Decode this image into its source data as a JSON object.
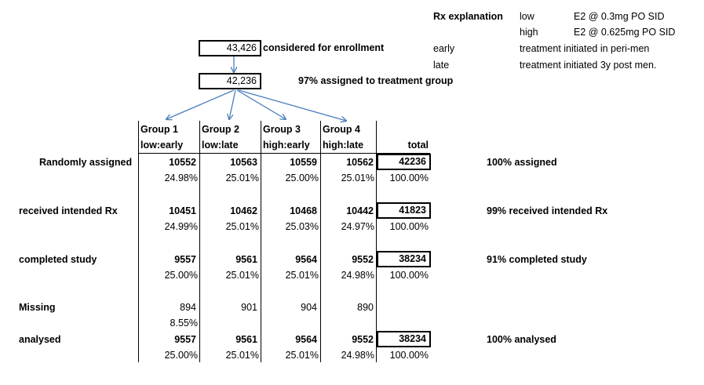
{
  "rx_explanation": {
    "title": "Rx explanation",
    "rows": [
      {
        "key": "low",
        "value": "E2 @ 0.3mg PO SID"
      },
      {
        "key": "high",
        "value": "E2 @ 0.625mg PO SID"
      },
      {
        "key": "early",
        "value": "treatment initiated in peri-men"
      },
      {
        "key": "late",
        "value": "treatment initiated 3y post men."
      }
    ]
  },
  "flow": {
    "considered_value": "43,426",
    "considered_label": "considered for enrollment",
    "assigned_value": "42,236",
    "assigned_label": "97% assigned to treatment group"
  },
  "table": {
    "groups": [
      {
        "name": "Group 1",
        "sub": "low:early"
      },
      {
        "name": "Group 2",
        "sub": "low:late"
      },
      {
        "name": "Group 3",
        "sub": "high:early"
      },
      {
        "name": "Group 4",
        "sub": "high:late"
      }
    ],
    "total_header": "total",
    "rows": [
      {
        "label": "Randomly assigned",
        "values": [
          "10552",
          "10563",
          "10559",
          "10562"
        ],
        "total": "42236",
        "pcts": [
          "24.98%",
          "25.01%",
          "25.00%",
          "25.01%"
        ],
        "total_pct": "100.00%",
        "note": "100% assigned"
      },
      {
        "label": "received intended Rx",
        "values": [
          "10451",
          "10462",
          "10468",
          "10442"
        ],
        "total": "41823",
        "pcts": [
          "24.99%",
          "25.01%",
          "25.03%",
          "24.97%"
        ],
        "total_pct": "100.00%",
        "note": "99% received intended Rx"
      },
      {
        "label": "completed study",
        "values": [
          "9557",
          "9561",
          "9564",
          "9552"
        ],
        "total": "38234",
        "pcts": [
          "25.00%",
          "25.01%",
          "25.01%",
          "24.98%"
        ],
        "total_pct": "100.00%",
        "note": "91% completed study"
      },
      {
        "label": "Missing",
        "values": [
          "894",
          "901",
          "904",
          "890"
        ],
        "pcts": [
          "8.55%"
        ]
      },
      {
        "label": "analysed",
        "values": [
          "9557",
          "9561",
          "9564",
          "9552"
        ],
        "total": "38234",
        "pcts": [
          "25.00%",
          "25.01%",
          "25.01%",
          "24.98%"
        ],
        "total_pct": "100.00%",
        "note": "100% analysed"
      }
    ]
  }
}
